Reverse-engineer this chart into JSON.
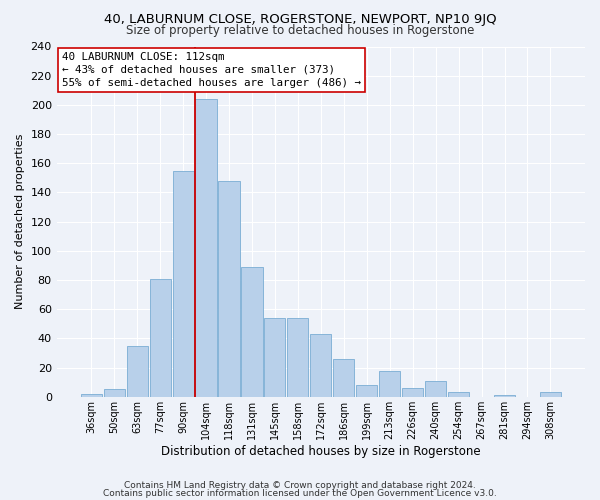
{
  "title": "40, LABURNUM CLOSE, ROGERSTONE, NEWPORT, NP10 9JQ",
  "subtitle": "Size of property relative to detached houses in Rogerstone",
  "xlabel": "Distribution of detached houses by size in Rogerstone",
  "ylabel": "Number of detached properties",
  "categories": [
    "36sqm",
    "50sqm",
    "63sqm",
    "77sqm",
    "90sqm",
    "104sqm",
    "118sqm",
    "131sqm",
    "145sqm",
    "158sqm",
    "172sqm",
    "186sqm",
    "199sqm",
    "213sqm",
    "226sqm",
    "240sqm",
    "254sqm",
    "267sqm",
    "281sqm",
    "294sqm",
    "308sqm"
  ],
  "values": [
    2,
    5,
    35,
    81,
    155,
    204,
    148,
    89,
    54,
    54,
    43,
    26,
    8,
    18,
    6,
    11,
    3,
    0,
    1,
    0,
    3
  ],
  "bar_color": "#b8d0ea",
  "bar_edge_color": "#7aadd4",
  "vline_bin_index": 5,
  "vline_color": "#cc0000",
  "annotation_line1": "40 LABURNUM CLOSE: 112sqm",
  "annotation_line2": "← 43% of detached houses are smaller (373)",
  "annotation_line3": "55% of semi-detached houses are larger (486) →",
  "annotation_box_color": "#ffffff",
  "annotation_box_edge": "#cc0000",
  "footnote1": "Contains HM Land Registry data © Crown copyright and database right 2024.",
  "footnote2": "Contains public sector information licensed under the Open Government Licence v3.0.",
  "background_color": "#eef2f9",
  "grid_color": "#ffffff",
  "ylim": [
    0,
    240
  ],
  "yticks": [
    0,
    20,
    40,
    60,
    80,
    100,
    120,
    140,
    160,
    180,
    200,
    220,
    240
  ]
}
